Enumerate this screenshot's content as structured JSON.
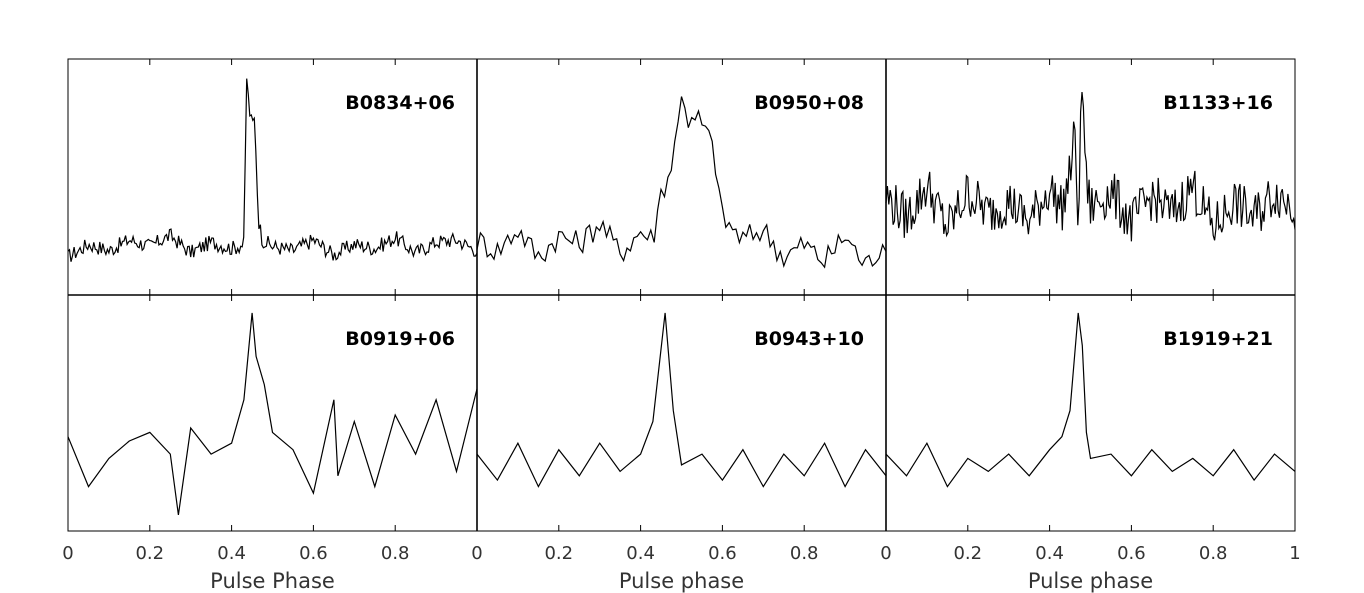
{
  "chart_data": {
    "type": "line",
    "layout": "2x3 grid of pulse profiles",
    "xlim": [
      0,
      1
    ],
    "x_ticks": [
      "0",
      "0.2",
      "0.4",
      "0.6",
      "0.8",
      "1"
    ],
    "xlabels": [
      "Pulse Phase",
      "Pulse phase",
      "Pulse phase"
    ],
    "y_axis": "unlabeled normalized intensity",
    "line_color": "#000000",
    "panels": [
      {
        "name": "B0834+06",
        "row": 0,
        "col": 0,
        "x": [
          0,
          0.05,
          0.1,
          0.15,
          0.2,
          0.25,
          0.3,
          0.35,
          0.4,
          0.43,
          0.437,
          0.443,
          0.45,
          0.457,
          0.465,
          0.475,
          0.5,
          0.55,
          0.6,
          0.65,
          0.7,
          0.75,
          0.8,
          0.85,
          0.9,
          0.95,
          1
        ],
        "y": [
          0.12,
          0.18,
          0.15,
          0.2,
          0.17,
          0.22,
          0.14,
          0.19,
          0.16,
          0.18,
          0.95,
          0.8,
          0.73,
          0.76,
          0.3,
          0.2,
          0.17,
          0.15,
          0.2,
          0.13,
          0.18,
          0.16,
          0.21,
          0.14,
          0.19,
          0.2,
          0.15
        ]
      },
      {
        "name": "B0950+08",
        "row": 0,
        "col": 1,
        "x": [
          0,
          0.05,
          0.1,
          0.15,
          0.2,
          0.25,
          0.3,
          0.35,
          0.4,
          0.43,
          0.45,
          0.47,
          0.49,
          0.5,
          0.52,
          0.54,
          0.56,
          0.58,
          0.6,
          0.65,
          0.7,
          0.75,
          0.8,
          0.85,
          0.9,
          0.95,
          1
        ],
        "y": [
          0.2,
          0.15,
          0.25,
          0.12,
          0.22,
          0.18,
          0.28,
          0.14,
          0.24,
          0.2,
          0.42,
          0.5,
          0.7,
          0.9,
          0.72,
          0.76,
          0.7,
          0.6,
          0.3,
          0.2,
          0.25,
          0.12,
          0.18,
          0.1,
          0.22,
          0.08,
          0.2
        ]
      },
      {
        "name": "B1133+16",
        "row": 0,
        "col": 2,
        "x": [
          0,
          0.05,
          0.1,
          0.15,
          0.2,
          0.25,
          0.3,
          0.35,
          0.4,
          0.43,
          0.45,
          0.46,
          0.47,
          0.48,
          0.49,
          0.5,
          0.55,
          0.6,
          0.65,
          0.7,
          0.75,
          0.8,
          0.85,
          0.9,
          0.95,
          1
        ],
        "y": [
          0.4,
          0.3,
          0.45,
          0.25,
          0.42,
          0.32,
          0.38,
          0.28,
          0.44,
          0.34,
          0.5,
          0.7,
          0.3,
          0.95,
          0.45,
          0.35,
          0.42,
          0.28,
          0.4,
          0.32,
          0.45,
          0.25,
          0.38,
          0.3,
          0.42,
          0.35
        ]
      },
      {
        "name": "B0919+06",
        "row": 1,
        "col": 0,
        "x": [
          0,
          0.05,
          0.1,
          0.15,
          0.2,
          0.25,
          0.27,
          0.3,
          0.35,
          0.4,
          0.43,
          0.45,
          0.46,
          0.48,
          0.5,
          0.55,
          0.6,
          0.65,
          0.66,
          0.7,
          0.75,
          0.8,
          0.85,
          0.9,
          0.95,
          1
        ],
        "y": [
          0.38,
          0.15,
          0.28,
          0.36,
          0.4,
          0.3,
          0.02,
          0.42,
          0.3,
          0.35,
          0.55,
          0.95,
          0.75,
          0.62,
          0.4,
          0.32,
          0.12,
          0.55,
          0.2,
          0.45,
          0.15,
          0.48,
          0.3,
          0.55,
          0.22,
          0.6
        ]
      },
      {
        "name": "B0943+10",
        "row": 1,
        "col": 1,
        "x": [
          0,
          0.05,
          0.1,
          0.15,
          0.2,
          0.25,
          0.3,
          0.35,
          0.4,
          0.43,
          0.46,
          0.48,
          0.5,
          0.55,
          0.6,
          0.65,
          0.7,
          0.75,
          0.8,
          0.85,
          0.9,
          0.95,
          1
        ],
        "y": [
          0.3,
          0.18,
          0.35,
          0.15,
          0.32,
          0.2,
          0.35,
          0.22,
          0.3,
          0.45,
          0.95,
          0.5,
          0.25,
          0.3,
          0.18,
          0.32,
          0.15,
          0.3,
          0.2,
          0.35,
          0.15,
          0.32,
          0.2
        ]
      },
      {
        "name": "B1919+21",
        "row": 1,
        "col": 2,
        "x": [
          0,
          0.05,
          0.1,
          0.15,
          0.2,
          0.25,
          0.3,
          0.35,
          0.4,
          0.43,
          0.45,
          0.47,
          0.48,
          0.49,
          0.5,
          0.55,
          0.6,
          0.65,
          0.7,
          0.75,
          0.8,
          0.85,
          0.9,
          0.95,
          1
        ],
        "y": [
          0.3,
          0.2,
          0.35,
          0.15,
          0.28,
          0.22,
          0.3,
          0.2,
          0.32,
          0.38,
          0.5,
          0.95,
          0.8,
          0.4,
          0.28,
          0.3,
          0.2,
          0.32,
          0.22,
          0.28,
          0.2,
          0.32,
          0.18,
          0.3,
          0.22
        ]
      }
    ]
  }
}
